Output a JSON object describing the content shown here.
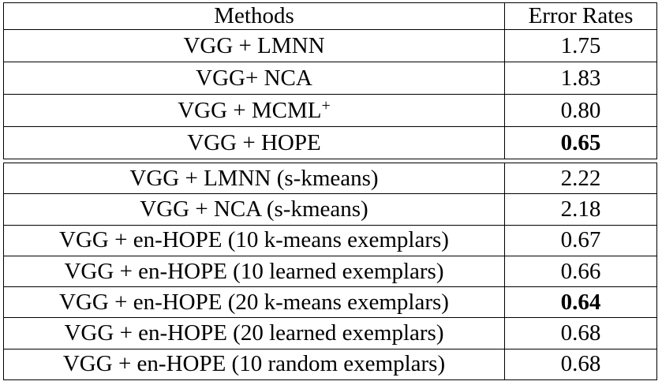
{
  "header": {
    "methods": "Methods",
    "error_rates": "Error Rates"
  },
  "sections": [
    {
      "rows": [
        {
          "method": "VGG + LMNN",
          "error": "1.75"
        },
        {
          "method": "VGG+ NCA",
          "error": "1.83"
        },
        {
          "method": "VGG + MCML",
          "superscript": "+",
          "error": "0.80"
        },
        {
          "method": "VGG + HOPE",
          "error": "0.65",
          "bold": true
        }
      ]
    },
    {
      "rows": [
        {
          "method": "VGG + LMNN (s-kmeans)",
          "error": "2.22"
        },
        {
          "method": "VGG + NCA (s-kmeans)",
          "error": "2.18"
        },
        {
          "method": "VGG + en-HOPE (10 k-means exemplars)",
          "error": "0.67"
        },
        {
          "method": "VGG + en-HOPE (10 learned exemplars)",
          "error": "0.66"
        },
        {
          "method": "VGG + en-HOPE (20 k-means exemplars)",
          "error": "0.64",
          "bold": true
        },
        {
          "method": "VGG + en-HOPE (20 learned exemplars)",
          "error": "0.68"
        },
        {
          "method": "VGG + en-HOPE (10 random exemplars)",
          "error": "0.68"
        }
      ]
    }
  ]
}
